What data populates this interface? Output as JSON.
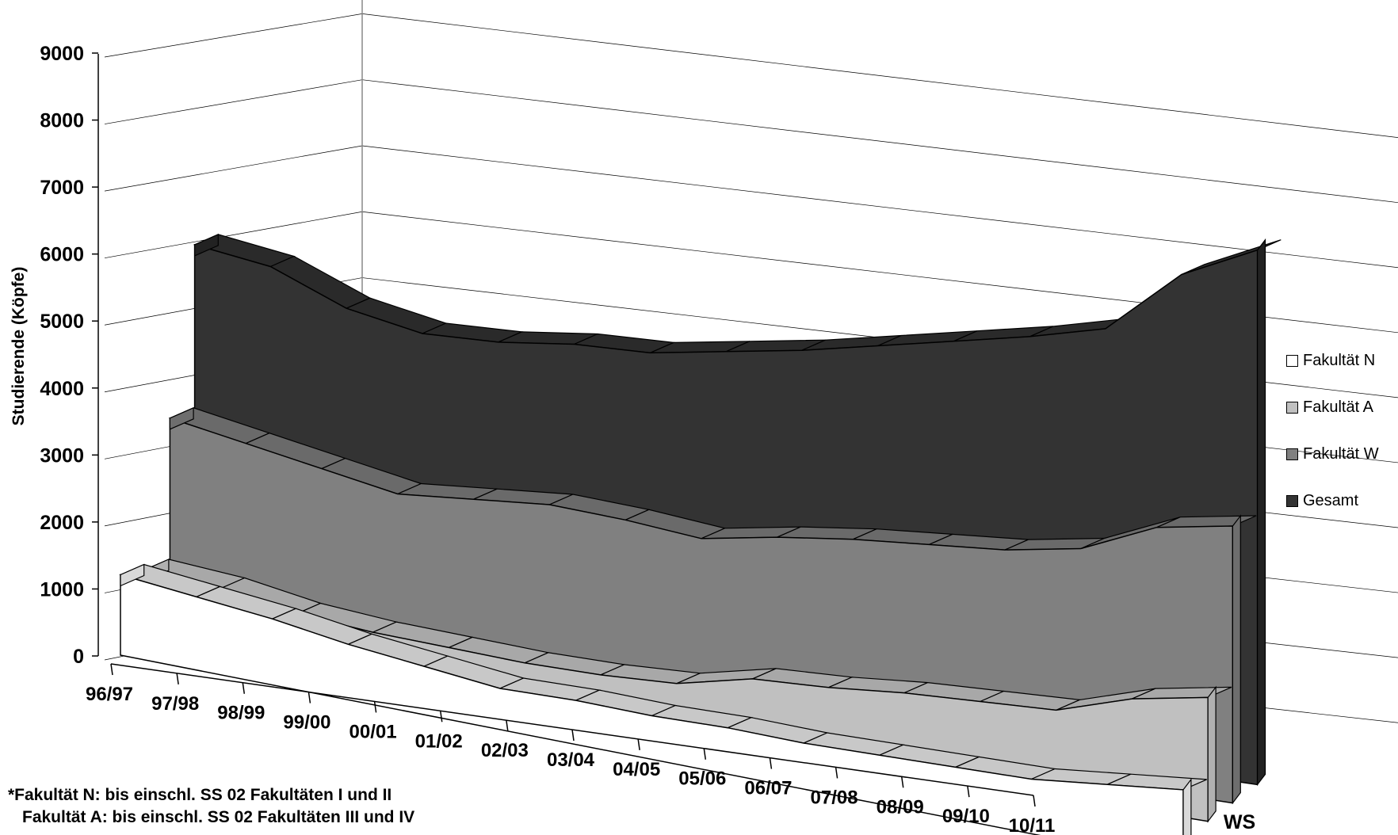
{
  "chart_data": {
    "type": "area",
    "ylabel": "Studierende (Köpfe)",
    "xlabel": "WS",
    "ylim": [
      0,
      9000
    ],
    "yticks": [
      0,
      1000,
      2000,
      3000,
      4000,
      5000,
      6000,
      7000,
      8000,
      9000
    ],
    "categories": [
      "96/97",
      "97/98",
      "98/99",
      "99/00",
      "00/01",
      "01/02",
      "02/03",
      "03/04",
      "04/05",
      "05/06",
      "06/07",
      "07/08",
      "08/09",
      "09/10",
      "10/11"
    ],
    "series": [
      {
        "name": "Fakultät N",
        "color": "#ffffff",
        "values": [
          1200,
          1000,
          800,
          550,
          350,
          150,
          100,
          0,
          -50,
          -150,
          -200,
          -250,
          -300,
          -250,
          -200
        ]
      },
      {
        "name": "Fakultät A",
        "color": "#c0c0c0",
        "values": [
          1150,
          1000,
          750,
          600,
          500,
          400,
          350,
          350,
          550,
          550,
          600,
          600,
          600,
          900,
          1050
        ]
      },
      {
        "name": "Fakultät W",
        "color": "#808080",
        "values": [
          3300,
          3050,
          2800,
          2550,
          2600,
          2650,
          2550,
          2400,
          2550,
          2650,
          2700,
          2750,
          2900,
          3350,
          3500
        ]
      },
      {
        "name": "Gesamt",
        "color": "#333333",
        "values": [
          5800,
          5600,
          5100,
          4850,
          4850,
          4950,
          4950,
          5100,
          5250,
          5450,
          5650,
          5850,
          6100,
          7050,
          7550
        ]
      }
    ],
    "grid": true,
    "legend": "right"
  },
  "footnote": {
    "line1": "*Fakultät N: bis einschl. SS 02 Fakultäten I und II",
    "line2": "Fakultät A: bis einschl. SS 02 Fakultäten III und IV"
  }
}
